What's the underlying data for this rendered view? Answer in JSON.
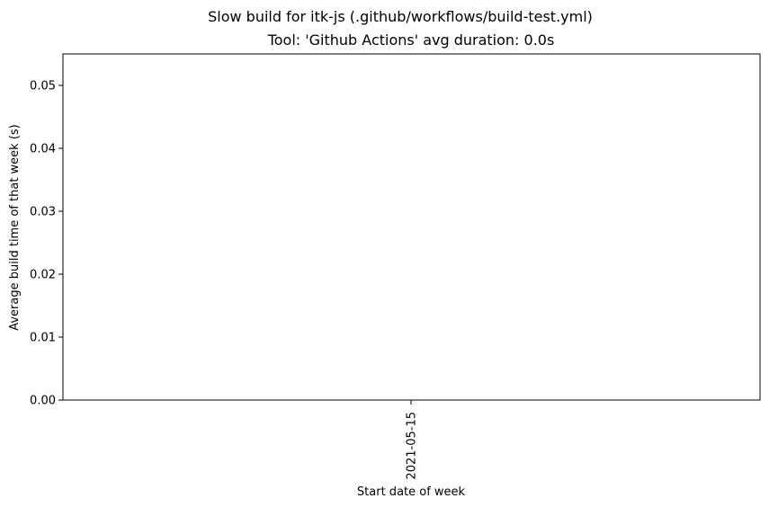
{
  "figure": {
    "suptitle": "Slow build for itk-js (.github/workflows/build-test.yml)"
  },
  "chart_data": {
    "type": "bar",
    "title": "Tool: 'Github Actions' avg duration: 0.0s",
    "xlabel": "Start date of week",
    "ylabel": "Average build time of that week (s)",
    "categories": [
      "2021-05-15"
    ],
    "values": [
      0.0
    ],
    "ylim": [
      0,
      0.055
    ],
    "yticks": [
      0.0,
      0.01,
      0.02,
      0.03,
      0.04,
      0.05
    ],
    "ytick_labels": [
      "0.00",
      "0.01",
      "0.02",
      "0.03",
      "0.04",
      "0.05"
    ],
    "grid": false,
    "legend": "none",
    "colors": {
      "bar": "#1f77b4",
      "axes": "#000000",
      "background": "#ffffff"
    }
  }
}
